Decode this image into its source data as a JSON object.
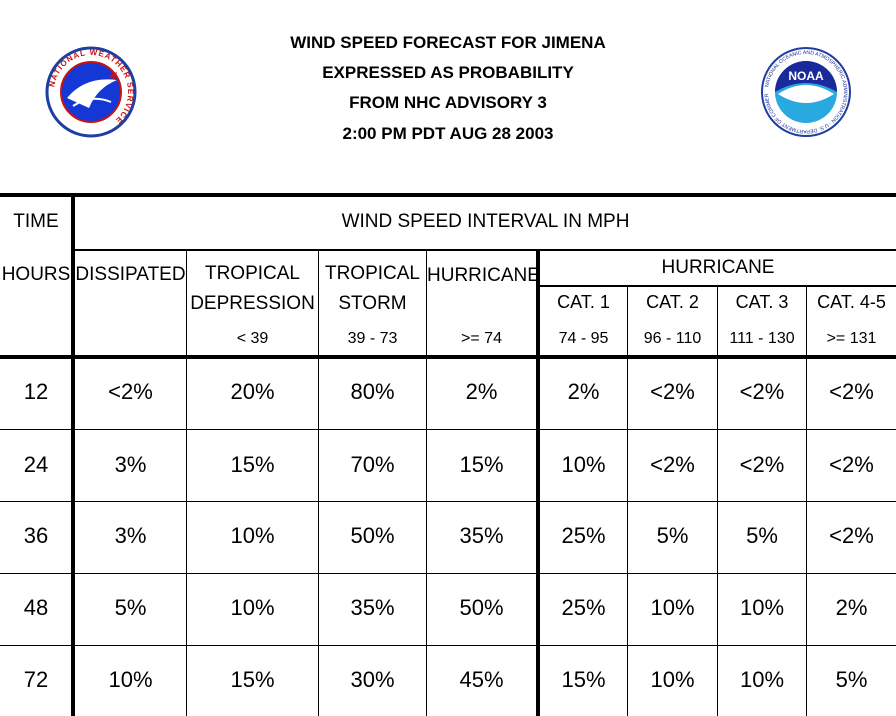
{
  "header": {
    "line1": "WIND SPEED FORECAST FOR JIMENA",
    "line2": "EXPRESSED AS PROBABILITY",
    "line3": "FROM NHC ADVISORY   3",
    "line4": "2:00 PM PDT AUG 28 2003"
  },
  "logos": {
    "nws_text": "NATIONAL WEATHER SERVICE",
    "noaa_text": "NOAA",
    "noaa_ring": "NATIONAL OCEANIC AND ATMOSPHERIC ADMINISTRATION · U.S. DEPARTMENT OF COMMERCE"
  },
  "table": {
    "time_label": "TIME",
    "hours_label": "HOURS",
    "interval_title": "WIND SPEED INTERVAL IN MPH",
    "dissipated": "DISSIPATED",
    "td_l1": "TROPICAL",
    "td_l2": "DEPRESSION",
    "td_range": "< 39",
    "ts_l1": "TROPICAL",
    "ts_l2": "STORM",
    "ts_range": "39 - 73",
    "hur_label": "HURRICANE",
    "hur_range": ">= 74",
    "hur_group": "HURRICANE",
    "cat1": "CAT. 1",
    "cat1_range": "74 - 95",
    "cat2": "CAT. 2",
    "cat2_range": "96 - 110",
    "cat3": "CAT. 3",
    "cat3_range": "111 - 130",
    "cat45": "CAT. 4-5",
    "cat45_range": ">= 131",
    "rows": [
      {
        "hour": "12",
        "vals": [
          "<2%",
          "20%",
          "80%",
          "2%",
          "2%",
          "<2%",
          "<2%",
          "<2%"
        ]
      },
      {
        "hour": "24",
        "vals": [
          "3%",
          "15%",
          "70%",
          "15%",
          "10%",
          "<2%",
          "<2%",
          "<2%"
        ]
      },
      {
        "hour": "36",
        "vals": [
          "3%",
          "10%",
          "50%",
          "35%",
          "25%",
          "5%",
          "5%",
          "<2%"
        ]
      },
      {
        "hour": "48",
        "vals": [
          "5%",
          "10%",
          "35%",
          "50%",
          "25%",
          "10%",
          "10%",
          "2%"
        ]
      },
      {
        "hour": "72",
        "vals": [
          "10%",
          "15%",
          "30%",
          "45%",
          "15%",
          "10%",
          "10%",
          "5%"
        ]
      }
    ]
  }
}
